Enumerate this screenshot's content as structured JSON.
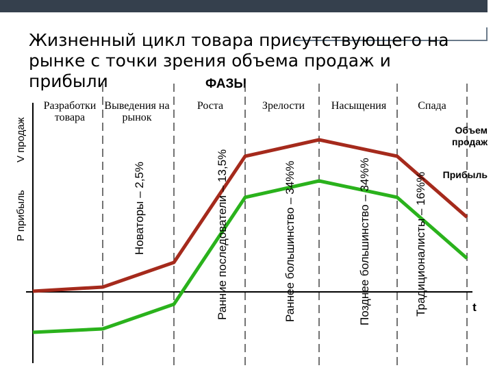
{
  "title": "Жизненный цикл товара присутствующего на рынке с точки зрения объема продаж и прибыли",
  "phases_title": "ФАЗЫ",
  "phases": [
    "Разработки товара",
    "Выведения на рынок",
    "Роста",
    "Зрелости",
    "Насыщения",
    "Спада"
  ],
  "adopter_groups": [
    "Новаторы – 2,5%",
    "Ранние последователи – 13,5%",
    "Раннее большинство – 34%%",
    "Позднее большинство – 34%%",
    "Традиционалисты – 16%%"
  ],
  "axes": {
    "y_label_profit": "P прибыль",
    "y_label_sales": "V продаж",
    "x_label": "t"
  },
  "legend": {
    "sales": "Объем продаж",
    "profit": "Прибыль"
  },
  "colors": {
    "sales": "#a52a1c",
    "profit": "#2ab21c",
    "divider": "#444444",
    "header_bar": "#35404d"
  }
}
